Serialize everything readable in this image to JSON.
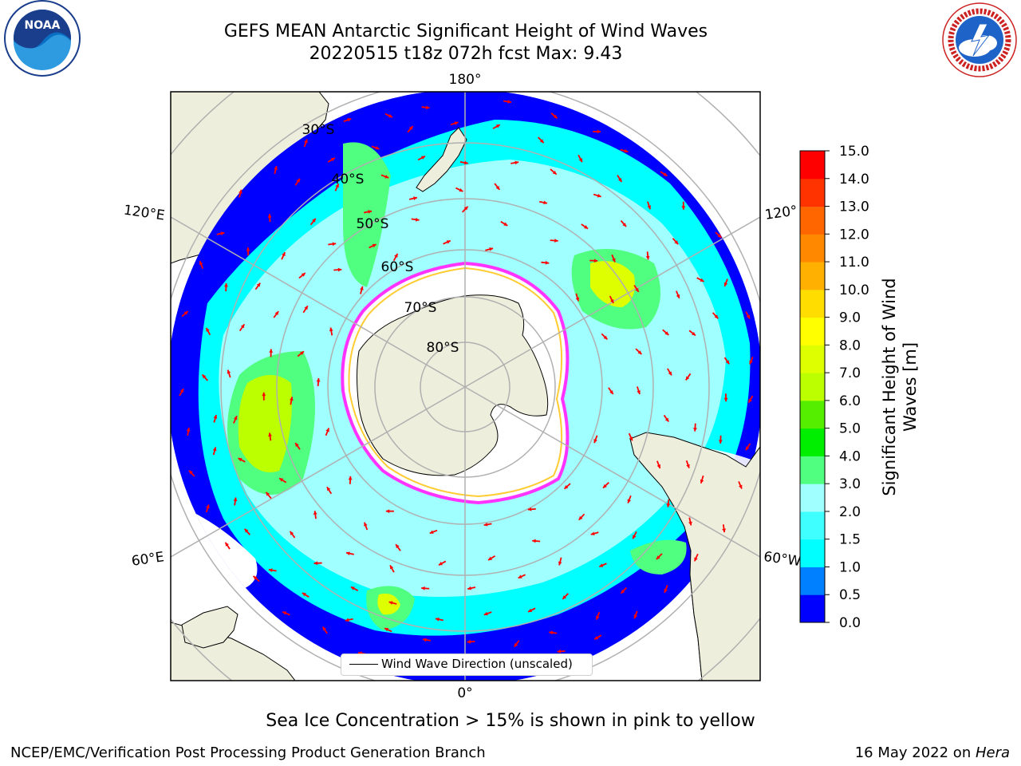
{
  "title": {
    "line1": "GEFS MEAN Antarctic Significant Height of Wind Waves",
    "line2": "20220515 t18z 072h fcst   Max: 9.43"
  },
  "logos": {
    "left": {
      "icon": "noaa-logo",
      "text": "NOAA"
    },
    "right": {
      "icon": "national-weather-service-logo"
    }
  },
  "map": {
    "projection": "south-polar-stereographic",
    "meridian_labels": {
      "top": "180°",
      "bottom": "0°",
      "left_upper": "120°E",
      "left_lower": "60°E",
      "right_upper": "120°",
      "right_lower": "60°W"
    },
    "latitude_labels": [
      "30°S",
      "40°S",
      "50°S",
      "60°S",
      "70°S",
      "80°S"
    ],
    "colors": {
      "land": "#eeeedd",
      "arrows": "#ff0000",
      "ice_edge": "#ff33ff",
      "grid": "#b0b0b0"
    }
  },
  "legend": {
    "label": "Wind Wave Direction (unscaled)"
  },
  "colorbar": {
    "label_line1": "Significant Height of Wind",
    "label_line2": "Waves [m]",
    "ticks": [
      "0.0",
      "0.5",
      "1.0",
      "1.5",
      "2.0",
      "3.0",
      "4.0",
      "5.0",
      "6.0",
      "7.0",
      "8.0",
      "9.0",
      "10.0",
      "11.0",
      "12.0",
      "13.0",
      "14.0",
      "15.0"
    ],
    "colors": [
      "#0000ff",
      "#0080ff",
      "#00ffff",
      "#40ffff",
      "#a0ffff",
      "#50ff80",
      "#00ee00",
      "#55ee00",
      "#bbff00",
      "#ddff00",
      "#ffff00",
      "#ffdd00",
      "#ffb000",
      "#ff8800",
      "#ff6600",
      "#ff3300",
      "#ff0000"
    ]
  },
  "notes": {
    "sea_ice": "Sea Ice Concentration > 15% is shown in pink to yellow"
  },
  "footer": {
    "left": "NCEP/EMC/Verification Post Processing Product Generation Branch",
    "right_prefix": "16 May 2022 on ",
    "right_host": "Hera"
  }
}
